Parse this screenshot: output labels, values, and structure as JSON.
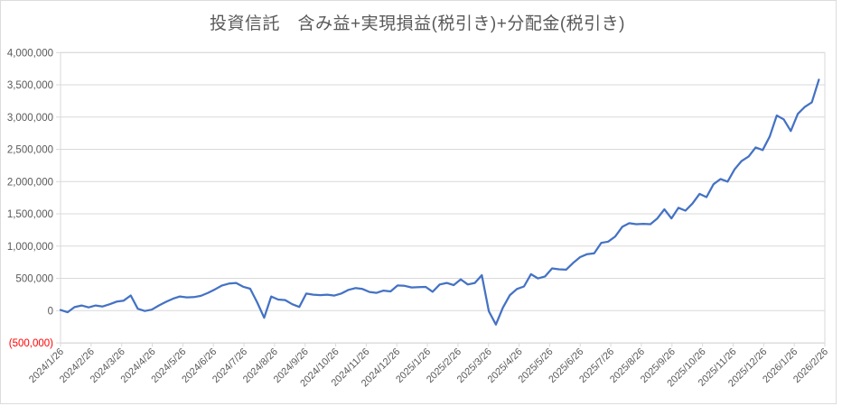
{
  "chart_data": {
    "type": "line",
    "title": "投資信託　含み益+実現損益(税引き)+分配金(税引き)",
    "legend": "none",
    "grid": "horizontal",
    "ylim": [
      -500000,
      4000000
    ],
    "x_range": {
      "start": "2024/1/26",
      "end": "2026/2/26",
      "point_frequency": "weekly"
    },
    "y_ticks": [
      {
        "value": 4000000,
        "label": "4,000,000"
      },
      {
        "value": 3500000,
        "label": "3,500,000"
      },
      {
        "value": 3000000,
        "label": "3,000,000"
      },
      {
        "value": 2500000,
        "label": "2,500,000"
      },
      {
        "value": 2000000,
        "label": "2,000,000"
      },
      {
        "value": 1500000,
        "label": "1,500,000"
      },
      {
        "value": 1000000,
        "label": "1,000,000"
      },
      {
        "value": 500000,
        "label": "500,000"
      },
      {
        "value": 0,
        "label": "0"
      },
      {
        "value": -500000,
        "label": "(500,000)",
        "negative": true
      }
    ],
    "x_tick_labels": [
      "2024/1/26",
      "2024/2/26",
      "2024/3/26",
      "2024/4/26",
      "2024/5/26",
      "2024/6/26",
      "2024/7/26",
      "2024/8/26",
      "2024/9/26",
      "2024/10/26",
      "2024/11/26",
      "2024/12/26",
      "2025/1/26",
      "2025/2/26",
      "2025/3/26",
      "2025/4/26",
      "2025/5/26",
      "2025/6/26",
      "2025/7/26",
      "2025/8/26",
      "2025/9/26",
      "2025/10/26",
      "2025/11/26",
      "2025/12/26",
      "2026/1/26",
      "2026/2/26"
    ],
    "series": [
      {
        "name": "含み益+実現損益(税引き)+分配金(税引き)",
        "values": [
          10000,
          -25000,
          55000,
          80000,
          50000,
          80000,
          65000,
          100000,
          140000,
          155000,
          235000,
          30000,
          -5000,
          15000,
          80000,
          135000,
          185000,
          220000,
          205000,
          210000,
          230000,
          275000,
          330000,
          390000,
          420000,
          430000,
          370000,
          340000,
          130000,
          -110000,
          220000,
          172000,
          163000,
          100000,
          58000,
          265000,
          248000,
          240000,
          247000,
          233000,
          266000,
          322000,
          350000,
          336000,
          290000,
          275000,
          310000,
          298000,
          390000,
          385000,
          360000,
          365000,
          368000,
          292000,
          405000,
          430000,
          396000,
          485000,
          405000,
          430000,
          550000,
          -10000,
          -215000,
          45000,
          240000,
          335000,
          375000,
          565000,
          500000,
          530000,
          655000,
          640000,
          635000,
          740000,
          830000,
          875000,
          890000,
          1050000,
          1070000,
          1150000,
          1300000,
          1355000,
          1340000,
          1345000,
          1340000,
          1430000,
          1570000,
          1430000,
          1595000,
          1550000,
          1660000,
          1810000,
          1760000,
          1960000,
          2040000,
          2000000,
          2190000,
          2320000,
          2390000,
          2530000,
          2490000,
          2700000,
          3025000,
          2965000,
          2785000,
          3050000,
          3160000,
          3230000,
          3580000
        ]
      }
    ],
    "colors": {
      "line": "#4472C4",
      "grid": "#d9d9d9",
      "plot_border": "#d9d9d9",
      "axis_label": "#595959",
      "negative_label": "#ff0000",
      "title": "#595959"
    }
  }
}
